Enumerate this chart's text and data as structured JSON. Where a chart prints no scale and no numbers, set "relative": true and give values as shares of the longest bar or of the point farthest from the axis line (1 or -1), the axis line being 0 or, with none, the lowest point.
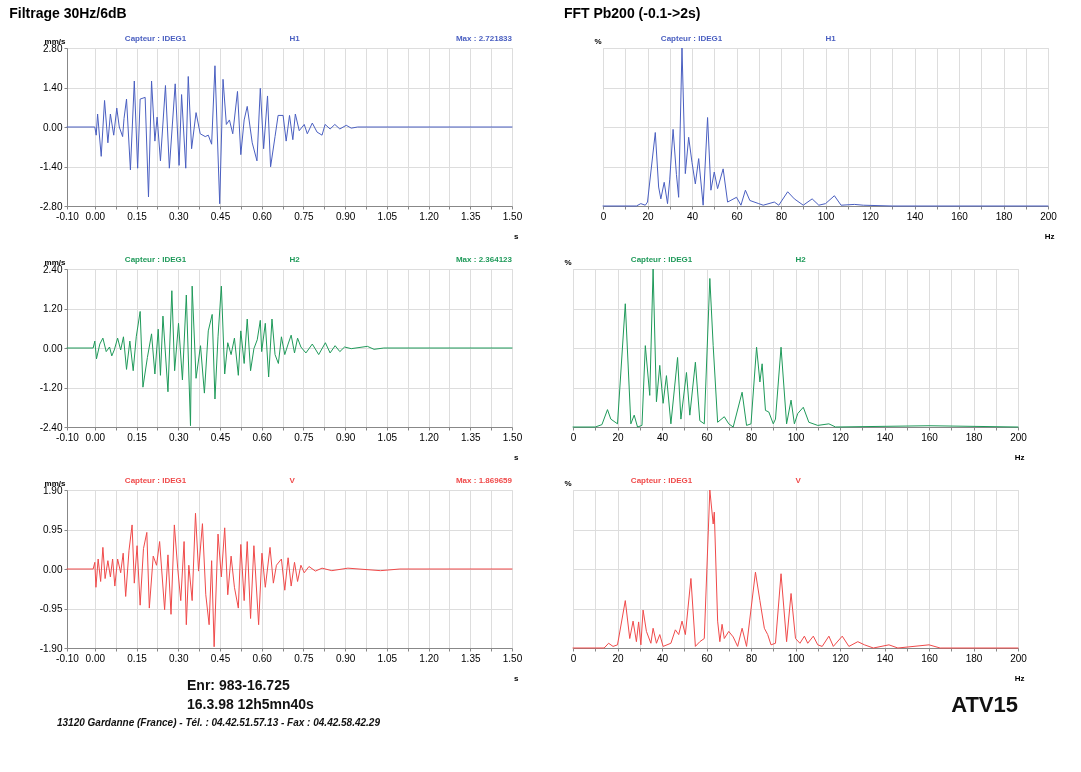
{
  "chart_data": [
    {
      "type": "line",
      "title": "Filtrage 30Hz/6dB",
      "xlabel": "s",
      "ylabel": "mm/s",
      "annotations": [
        "Capteur : IDEG1",
        "H1",
        "Max : 2.721833"
      ],
      "grid": true,
      "xlim": [
        -0.1,
        1.5
      ],
      "xticks": [
        {
          "value": -0.1,
          "label": "-0.10"
        },
        {
          "value": 0,
          "label": "0.00"
        },
        {
          "value": 0.075,
          "label": null
        },
        {
          "value": 0.15,
          "label": "0.15"
        },
        {
          "value": 0.225,
          "label": null
        },
        {
          "value": 0.3,
          "label": "0.30"
        },
        {
          "value": 0.375,
          "label": null
        },
        {
          "value": 0.45,
          "label": "0.45"
        },
        {
          "value": 0.525,
          "label": null
        },
        {
          "value": 0.6,
          "label": "0.60"
        },
        {
          "value": 0.675,
          "label": null
        },
        {
          "value": 0.75,
          "label": "0.75"
        },
        {
          "value": 0.825,
          "label": null
        },
        {
          "value": 0.9,
          "label": "0.90"
        },
        {
          "value": 0.975,
          "label": null
        },
        {
          "value": 1.05,
          "label": "1.05"
        },
        {
          "value": 1.125,
          "label": null
        },
        {
          "value": 1.2,
          "label": "1.20"
        },
        {
          "value": 1.275,
          "label": null
        },
        {
          "value": 1.35,
          "label": "1.35"
        },
        {
          "value": 1.425,
          "label": null
        },
        {
          "value": 1.5,
          "label": "1.50"
        }
      ],
      "ylim": [
        -2.8,
        2.8
      ],
      "yticks": [
        {
          "value": -2.8,
          "label": "-2.80"
        },
        {
          "value": -1.4,
          "label": "-1.40"
        },
        {
          "value": 0,
          "label": "0.00"
        },
        {
          "value": 1.4,
          "label": "1.40"
        },
        {
          "value": 2.8,
          "label": "2.80"
        }
      ],
      "x": [
        -0.1,
        0,
        0.005,
        0.01,
        0.023,
        0.035,
        0.047,
        0.056,
        0.068,
        0.079,
        0.088,
        0.1,
        0.105,
        0.114,
        0.128,
        0.142,
        0.154,
        0.163,
        0.181,
        0.193,
        0.204,
        0.216,
        0.224,
        0.236,
        0.254,
        0.268,
        0.289,
        0.303,
        0.312,
        0.327,
        0.336,
        0.348,
        0.364,
        0.379,
        0.397,
        0.408,
        0.42,
        0.432,
        0.449,
        0.461,
        0.473,
        0.484,
        0.496,
        0.513,
        0.525,
        0.537,
        0.548,
        0.566,
        0.583,
        0.595,
        0.607,
        0.621,
        0.632,
        0.648,
        0.659,
        0.677,
        0.688,
        0.7,
        0.712,
        0.721,
        0.735,
        0.753,
        0.764,
        0.782,
        0.799,
        0.817,
        0.828,
        0.846,
        0.863,
        0.881,
        0.904,
        0.922,
        0.945,
        1.5
      ],
      "series": [
        {
          "color": "#4a5fc1",
          "values": [
            0,
            0,
            -0.29,
            0.46,
            -1.04,
            0.94,
            -0.56,
            0.46,
            -0.29,
            0.67,
            0,
            -0.34,
            0.3,
            0.99,
            -1.52,
            1.63,
            -1.46,
            0.99,
            1.05,
            -2.48,
            1.63,
            -0.5,
            0.35,
            -1.2,
            1.47,
            -1.46,
            1.53,
            -1.36,
            1.15,
            -1.46,
            1.79,
            -0.77,
            0.51,
            -0.24,
            -0.34,
            -0.29,
            -0.61,
            2.17,
            -2.72,
            1.69,
            0.09,
            0.25,
            -0.24,
            1.26,
            -0.98,
            0.25,
            0.73,
            -0.56,
            -1.2,
            1.37,
            -0.77,
            1.1,
            -1.41,
            -0.34,
            0.41,
            0.41,
            -0.5,
            0.41,
            -0.45,
            0.46,
            -0.13,
            0.09,
            -0.24,
            0.14,
            -0.18,
            -0.29,
            0.09,
            -0.07,
            0.09,
            -0.07,
            0.06,
            -0.04,
            0,
            0
          ]
        }
      ]
    },
    {
      "type": "line",
      "title": "FFT Pb200 (-0.1->2s)",
      "xlabel": "Hz",
      "ylabel": "%",
      "annotations": [
        "Capteur : IDEG1",
        "H1"
      ],
      "grid": true,
      "relative": true,
      "xlim": [
        0,
        200
      ],
      "xticks": [
        0,
        {
          "value": 10,
          "label": null
        },
        20,
        {
          "value": 30,
          "label": null
        },
        40,
        {
          "value": 50,
          "label": null
        },
        60,
        {
          "value": 70,
          "label": null
        },
        80,
        {
          "value": 90,
          "label": null
        },
        100,
        {
          "value": 110,
          "label": null
        },
        120,
        {
          "value": 130,
          "label": null
        },
        140,
        {
          "value": 150,
          "label": null
        },
        160,
        {
          "value": 170,
          "label": null
        },
        180,
        {
          "value": 190,
          "label": null
        },
        200
      ],
      "x": [
        0,
        15,
        17,
        19,
        20,
        23.5,
        25,
        26,
        27.5,
        29,
        30,
        31.5,
        33,
        34,
        35.5,
        37,
        38.5,
        40,
        41.5,
        43,
        45,
        47,
        48.5,
        50,
        51.5,
        54,
        56,
        60,
        62,
        64,
        66,
        70,
        72,
        77,
        79,
        83,
        86,
        90,
        94,
        97,
        100,
        104,
        107,
        113,
        117,
        130,
        200
      ],
      "series": [
        {
          "color": "#4a5fc1",
          "values": [
            0,
            0,
            0.015,
            0.005,
            0.025,
            0.465,
            0.12,
            0.045,
            0.15,
            0.015,
            0.17,
            0.485,
            0.2,
            0.055,
            1.0,
            0.205,
            0.435,
            0.275,
            0.14,
            0.3,
            0.005,
            0.56,
            0.1,
            0.215,
            0.11,
            0.235,
            0.025,
            0.055,
            0.005,
            0.1,
            0.035,
            0.015,
            0.005,
            0.025,
            0.005,
            0.09,
            0.045,
            0.005,
            0.045,
            0.005,
            0.015,
            0.065,
            0.005,
            0.01,
            0.005,
            0,
            0
          ]
        }
      ]
    },
    {
      "type": "line",
      "xlabel": "s",
      "ylabel": "mm/s",
      "annotations": [
        "Capteur : IDEG1",
        "H2",
        "Max : 2.364123"
      ],
      "grid": true,
      "xlim": [
        -0.1,
        1.5
      ],
      "xticks": [
        {
          "value": -0.1,
          "label": "-0.10"
        },
        {
          "value": 0,
          "label": "0.00"
        },
        {
          "value": 0.075,
          "label": null
        },
        {
          "value": 0.15,
          "label": "0.15"
        },
        {
          "value": 0.225,
          "label": null
        },
        {
          "value": 0.3,
          "label": "0.30"
        },
        {
          "value": 0.375,
          "label": null
        },
        {
          "value": 0.45,
          "label": "0.45"
        },
        {
          "value": 0.525,
          "label": null
        },
        {
          "value": 0.6,
          "label": "0.60"
        },
        {
          "value": 0.675,
          "label": null
        },
        {
          "value": 0.75,
          "label": "0.75"
        },
        {
          "value": 0.825,
          "label": null
        },
        {
          "value": 0.9,
          "label": "0.90"
        },
        {
          "value": 0.975,
          "label": null
        },
        {
          "value": 1.05,
          "label": "1.05"
        },
        {
          "value": 1.125,
          "label": null
        },
        {
          "value": 1.2,
          "label": "1.20"
        },
        {
          "value": 1.275,
          "label": null
        },
        {
          "value": 1.35,
          "label": "1.35"
        },
        {
          "value": 1.425,
          "label": null
        },
        {
          "value": 1.5,
          "label": "1.50"
        }
      ],
      "ylim": [
        -2.4,
        2.4
      ],
      "yticks": [
        {
          "value": -2.4,
          "label": "-2.40"
        },
        {
          "value": -1.2,
          "label": "-1.20"
        },
        {
          "value": 0,
          "label": "0.00"
        },
        {
          "value": 1.2,
          "label": "1.20"
        },
        {
          "value": 2.4,
          "label": "2.40"
        }
      ],
      "x": [
        -0.1,
        -0.006,
        0,
        0.006,
        0.018,
        0.029,
        0.041,
        0.053,
        0.061,
        0.07,
        0.082,
        0.093,
        0.103,
        0.114,
        0.126,
        0.138,
        0.149,
        0.163,
        0.173,
        0.189,
        0.204,
        0.216,
        0.228,
        0.236,
        0.245,
        0.263,
        0.277,
        0.287,
        0.301,
        0.315,
        0.329,
        0.344,
        0.35,
        0.364,
        0.38,
        0.394,
        0.408,
        0.422,
        0.432,
        0.443,
        0.455,
        0.467,
        0.478,
        0.49,
        0.502,
        0.516,
        0.525,
        0.537,
        0.548,
        0.56,
        0.572,
        0.584,
        0.595,
        0.6,
        0.613,
        0.625,
        0.637,
        0.648,
        0.66,
        0.671,
        0.683,
        0.695,
        0.706,
        0.718,
        0.729,
        0.741,
        0.759,
        0.782,
        0.805,
        0.829,
        0.846,
        0.864,
        0.881,
        0.898,
        0.922,
        0.98,
        1.004,
        1.039,
        1.5
      ],
      "series": [
        {
          "color": "#1f9a5a",
          "values": [
            0,
            0,
            0.21,
            -0.33,
            0.12,
            0.3,
            -0.11,
            0.03,
            -0.24,
            -0.06,
            0.3,
            -0.06,
            0.34,
            -0.65,
            0.21,
            -0.69,
            0.34,
            1.11,
            -1.19,
            -0.29,
            0.43,
            -0.79,
            0.57,
            -0.83,
            0.97,
            -1.33,
            1.74,
            -0.69,
            0.75,
            -0.97,
            1.61,
            -2.36,
            1.88,
            -0.92,
            0.07,
            -1.37,
            0.52,
            1.02,
            -1.55,
            0.34,
            1.88,
            -0.79,
            0.16,
            -0.2,
            0.3,
            -0.83,
            0.52,
            -0.47,
            0.88,
            -0.69,
            -0.02,
            0.25,
            0.84,
            -0.11,
            0.75,
            -0.88,
            0.88,
            -0.2,
            -0.47,
            0.34,
            -0.2,
            0.12,
            0.39,
            -0.15,
            0.3,
            0.03,
            -0.15,
            0.12,
            -0.2,
            0.16,
            -0.15,
            0.07,
            -0.11,
            0.03,
            -0.02,
            0.05,
            -0.04,
            0,
            0
          ]
        }
      ]
    },
    {
      "type": "line",
      "xlabel": "Hz",
      "ylabel": "%",
      "annotations": [
        "Capteur : IDEG1",
        "H2"
      ],
      "grid": true,
      "relative": true,
      "xlim": [
        0,
        200
      ],
      "xticks": [
        0,
        {
          "value": 10,
          "label": null
        },
        20,
        {
          "value": 30,
          "label": null
        },
        40,
        {
          "value": 50,
          "label": null
        },
        60,
        {
          "value": 70,
          "label": null
        },
        80,
        {
          "value": 90,
          "label": null
        },
        100,
        {
          "value": 110,
          "label": null
        },
        120,
        {
          "value": 130,
          "label": null
        },
        140,
        {
          "value": 150,
          "label": null
        },
        160,
        {
          "value": 170,
          "label": null
        },
        180,
        {
          "value": 190,
          "label": null
        },
        200
      ],
      "x": [
        0,
        10,
        13,
        15.5,
        17,
        20,
        23.5,
        26,
        27.5,
        29,
        31,
        32.5,
        34.5,
        36,
        37.5,
        39,
        40.5,
        42,
        44,
        47,
        48.5,
        51,
        52.5,
        55,
        57,
        59,
        61.5,
        63,
        65,
        68,
        70,
        72,
        76,
        78,
        80,
        82.5,
        84,
        85,
        86.5,
        88,
        90,
        91,
        93.5,
        96,
        98,
        99.5,
        101,
        103.5,
        106,
        110,
        115,
        118,
        160,
        200
      ],
      "series": [
        {
          "color": "#1f9a5a",
          "values": [
            0,
            0,
            0.015,
            0.11,
            0.05,
            0.02,
            0.78,
            0.02,
            0.075,
            0,
            0.01,
            0.515,
            0.2,
            1.0,
            0.16,
            0.39,
            0.15,
            0.325,
            0.02,
            0.44,
            0.05,
            0.345,
            0.075,
            0.41,
            0.04,
            0.02,
            0.94,
            0.515,
            0.03,
            0.065,
            0.02,
            0,
            0.22,
            0.01,
            0.02,
            0.505,
            0.285,
            0.4,
            0.105,
            0.095,
            0.02,
            0.05,
            0.505,
            0.02,
            0.17,
            0.02,
            0.085,
            0.125,
            0.03,
            0.01,
            0.02,
            0,
            0.008,
            0
          ]
        }
      ]
    },
    {
      "type": "line",
      "xlabel": "s",
      "ylabel": "mm/s",
      "annotations": [
        "Capteur : IDEG1",
        "V",
        "Max : 1.869659",
        "Enr: 983-16.725",
        "16.3.98 12h5mn40s",
        "13120 Gardanne (France) - Tél. : 04.42.51.57.13 - Fax : 04.42.58.42.29"
      ],
      "grid": true,
      "xlim": [
        -0.1,
        1.5
      ],
      "xticks": [
        {
          "value": -0.1,
          "label": "-0.10"
        },
        {
          "value": 0,
          "label": "0.00"
        },
        {
          "value": 0.075,
          "label": null
        },
        {
          "value": 0.15,
          "label": "0.15"
        },
        {
          "value": 0.225,
          "label": null
        },
        {
          "value": 0.3,
          "label": "0.30"
        },
        {
          "value": 0.375,
          "label": null
        },
        {
          "value": 0.45,
          "label": "0.45"
        },
        {
          "value": 0.525,
          "label": null
        },
        {
          "value": 0.6,
          "label": "0.60"
        },
        {
          "value": 0.675,
          "label": null
        },
        {
          "value": 0.75,
          "label": "0.75"
        },
        {
          "value": 0.825,
          "label": null
        },
        {
          "value": 0.9,
          "label": "0.90"
        },
        {
          "value": 0.975,
          "label": null
        },
        {
          "value": 1.05,
          "label": "1.05"
        },
        {
          "value": 1.125,
          "label": null
        },
        {
          "value": 1.2,
          "label": "1.20"
        },
        {
          "value": 1.275,
          "label": null
        },
        {
          "value": 1.35,
          "label": "1.35"
        },
        {
          "value": 1.425,
          "label": null
        },
        {
          "value": 1.5,
          "label": "1.50"
        }
      ],
      "ylim": [
        -1.9,
        1.9
      ],
      "yticks": [
        {
          "value": -1.9,
          "label": "-1.90"
        },
        {
          "value": -0.95,
          "label": "-0.95"
        },
        {
          "value": 0,
          "label": "0.00"
        },
        {
          "value": 0.95,
          "label": "0.95"
        },
        {
          "value": 1.9,
          "label": "1.90"
        }
      ],
      "x": [
        -0.1,
        -0.006,
        0,
        0.004,
        0.012,
        0.021,
        0.029,
        0.037,
        0.047,
        0.056,
        0.064,
        0.072,
        0.082,
        0.093,
        0.102,
        0.111,
        0.123,
        0.134,
        0.142,
        0.152,
        0.163,
        0.175,
        0.187,
        0.196,
        0.21,
        0.222,
        0.233,
        0.251,
        0.263,
        0.274,
        0.286,
        0.298,
        0.309,
        0.321,
        0.329,
        0.338,
        0.35,
        0.362,
        0.373,
        0.387,
        0.399,
        0.411,
        0.42,
        0.429,
        0.443,
        0.455,
        0.467,
        0.478,
        0.49,
        0.502,
        0.516,
        0.525,
        0.537,
        0.548,
        0.56,
        0.572,
        0.589,
        0.601,
        0.613,
        0.63,
        0.642,
        0.653,
        0.671,
        0.683,
        0.695,
        0.706,
        0.718,
        0.729,
        0.741,
        0.753,
        0.77,
        0.793,
        0.817,
        0.852,
        0.91,
        1.027,
        1.097,
        1.5
      ],
      "series": [
        {
          "color": "#f04a4a",
          "values": [
            0,
            0,
            0.16,
            -0.44,
            0.24,
            -0.3,
            0.52,
            -0.23,
            0.2,
            -0.19,
            0.24,
            -0.41,
            0.24,
            -0.09,
            0.38,
            -0.66,
            0.45,
            1.06,
            -0.34,
            0.56,
            -0.87,
            0.49,
            0.88,
            -0.94,
            0.31,
            0.09,
            0.66,
            -0.98,
            0.34,
            -1.09,
            1.06,
            0.02,
            -0.76,
            0.66,
            -1.34,
            0.09,
            -0.76,
            1.34,
            -0.05,
            1.09,
            -0.62,
            -1.34,
            0.2,
            -1.87,
            0.84,
            -0.19,
            0.99,
            -0.62,
            0.31,
            -0.44,
            -0.94,
            0.59,
            -0.76,
            0.66,
            -1.19,
            0.56,
            -1.34,
            0.38,
            -0.44,
            0.52,
            -0.34,
            0.09,
            0.24,
            -0.51,
            0.27,
            -0.41,
            0.16,
            -0.3,
            0.09,
            -0.09,
            0.06,
            -0.05,
            0.02,
            -0.04,
            0.02,
            -0.04,
            0,
            0
          ]
        }
      ]
    },
    {
      "type": "line",
      "xlabel": "Hz",
      "ylabel": "%",
      "annotations": [
        "Capteur : IDEG1",
        "V",
        "ATV15"
      ],
      "grid": true,
      "relative": true,
      "xlim": [
        0,
        200
      ],
      "xticks": [
        0,
        {
          "value": 10,
          "label": null
        },
        20,
        {
          "value": 30,
          "label": null
        },
        40,
        {
          "value": 50,
          "label": null
        },
        60,
        {
          "value": 70,
          "label": null
        },
        80,
        {
          "value": 90,
          "label": null
        },
        100,
        {
          "value": 110,
          "label": null
        },
        120,
        {
          "value": 130,
          "label": null
        },
        140,
        {
          "value": 150,
          "label": null
        },
        160,
        {
          "value": 170,
          "label": null
        },
        180,
        {
          "value": 190,
          "label": null
        },
        200
      ],
      "x": [
        0,
        14,
        16,
        18,
        20,
        23.5,
        25.5,
        27,
        28.5,
        29.5,
        30.5,
        31.5,
        33,
        35,
        36,
        37.5,
        39,
        40.5,
        44,
        46,
        47.5,
        49,
        50.5,
        53,
        55,
        57,
        59,
        61.5,
        63,
        63.5,
        65,
        66,
        67,
        68,
        70,
        72,
        74,
        76,
        78,
        82,
        84,
        86,
        87.5,
        89,
        91,
        93.5,
        96,
        98,
        100,
        102,
        104,
        105.5,
        108,
        110,
        112,
        115,
        117,
        121,
        124,
        128,
        131,
        135,
        142,
        146,
        160,
        165,
        200
      ],
      "series": [
        {
          "color": "#f04a4a",
          "values": [
            0,
            0,
            0.03,
            0.01,
            0.02,
            0.3,
            0.06,
            0.17,
            0.04,
            0.165,
            0.02,
            0.24,
            0.105,
            0.03,
            0.125,
            0.03,
            0.085,
            0.01,
            0.03,
            0.115,
            0.085,
            0.17,
            0.085,
            0.44,
            0.01,
            0.04,
            0.06,
            1.0,
            0.785,
            0.86,
            0.17,
            0.04,
            0.15,
            0.06,
            0.105,
            0.07,
            0.01,
            0.125,
            0.01,
            0.48,
            0.3,
            0.125,
            0.085,
            0.02,
            0.03,
            0.47,
            0.04,
            0.345,
            0.06,
            0.03,
            0.075,
            0.03,
            0.075,
            0.02,
            0.01,
            0.075,
            0.01,
            0.075,
            0.01,
            0.04,
            0.02,
            0,
            0.02,
            0,
            0.02,
            0,
            0
          ]
        }
      ]
    }
  ]
}
